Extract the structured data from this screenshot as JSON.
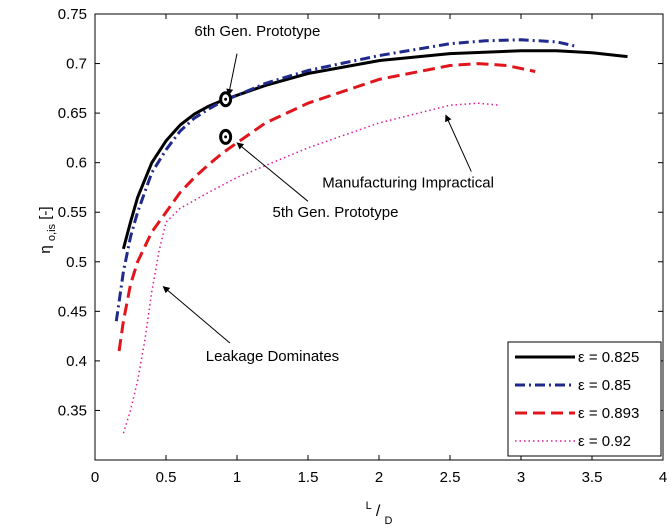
{
  "chart_data": {
    "type": "line",
    "xlim": [
      0,
      4
    ],
    "ylim": [
      0.3,
      0.75
    ],
    "xticks": [
      "0",
      "0.5",
      "1",
      "1.5",
      "2",
      "2.5",
      "3",
      "3.5",
      "4"
    ],
    "xtick_values": [
      0,
      0.5,
      1,
      1.5,
      2,
      2.5,
      3,
      3.5,
      4
    ],
    "yticks": [
      "0.35",
      "0.4",
      "0.45",
      "0.5",
      "0.55",
      "0.6",
      "0.65",
      "0.7",
      "0.75"
    ],
    "ytick_values": [
      0.35,
      0.4,
      0.45,
      0.5,
      0.55,
      0.6,
      0.65,
      0.7,
      0.75
    ],
    "xlabel": {
      "main": "L",
      "sep": "/",
      "sub": "D"
    },
    "ylabel": {
      "main": "η",
      "sub": "o,is",
      "unit": " [-]"
    },
    "grid": false,
    "legend_position": "bottom-right",
    "series": [
      {
        "name": "ε = 0.825",
        "color": "#000000",
        "style": "solid",
        "x": [
          0.2,
          0.25,
          0.3,
          0.4,
          0.5,
          0.6,
          0.7,
          0.8,
          0.9,
          1.0,
          1.2,
          1.5,
          2.0,
          2.5,
          3.0,
          3.25,
          3.5,
          3.75
        ],
        "y": [
          0.513,
          0.54,
          0.565,
          0.6,
          0.622,
          0.638,
          0.649,
          0.657,
          0.663,
          0.668,
          0.678,
          0.69,
          0.703,
          0.71,
          0.713,
          0.713,
          0.711,
          0.707
        ]
      },
      {
        "name": "ε = 0.85",
        "color": "#1f2a8c",
        "style": "dashdot",
        "x": [
          0.15,
          0.2,
          0.25,
          0.3,
          0.4,
          0.5,
          0.6,
          0.7,
          0.8,
          0.9,
          1.0,
          1.2,
          1.5,
          2.0,
          2.5,
          2.75,
          3.0,
          3.25,
          3.4
        ],
        "y": [
          0.44,
          0.49,
          0.525,
          0.55,
          0.59,
          0.613,
          0.632,
          0.645,
          0.654,
          0.662,
          0.668,
          0.68,
          0.693,
          0.708,
          0.72,
          0.723,
          0.724,
          0.722,
          0.717
        ]
      },
      {
        "name": "ε = 0.893",
        "color": "#e0161c",
        "style": "dashed",
        "x": [
          0.17,
          0.2,
          0.25,
          0.3,
          0.4,
          0.5,
          0.6,
          0.7,
          0.8,
          0.9,
          1.0,
          1.2,
          1.5,
          2.0,
          2.5,
          2.7,
          2.9,
          3.1
        ],
        "y": [
          0.41,
          0.44,
          0.477,
          0.5,
          0.53,
          0.55,
          0.57,
          0.585,
          0.598,
          0.61,
          0.62,
          0.64,
          0.66,
          0.684,
          0.698,
          0.7,
          0.698,
          0.692
        ]
      },
      {
        "name": "ε = 0.92",
        "color": "#e0199a",
        "style": "dotted",
        "x": [
          0.2,
          0.25,
          0.3,
          0.35,
          0.4,
          0.45,
          0.5,
          0.6,
          0.8,
          1.0,
          1.5,
          2.0,
          2.5,
          2.7,
          2.85
        ],
        "y": [
          0.327,
          0.35,
          0.38,
          0.42,
          0.47,
          0.51,
          0.54,
          0.554,
          0.57,
          0.585,
          0.615,
          0.64,
          0.658,
          0.66,
          0.658
        ]
      }
    ],
    "markers": [
      {
        "name": "6th Gen. Prototype",
        "x": 0.92,
        "y": 0.664
      },
      {
        "name": "5th Gen. Prototype",
        "x": 0.92,
        "y": 0.626
      }
    ],
    "annotations": [
      {
        "text": "6th Gen. Prototype",
        "text_x": 0.7,
        "text_y": 0.728,
        "anchor": "start",
        "arrow_from": [
          1.0,
          0.71
        ],
        "arrow_to": [
          0.94,
          0.668
        ]
      },
      {
        "text": "5th Gen. Prototype",
        "text_x": 1.25,
        "text_y": 0.545,
        "anchor": "start",
        "arrow_from": [
          1.5,
          0.561
        ],
        "arrow_to": [
          1.0,
          0.62
        ]
      },
      {
        "text": "Manufacturing Impractical",
        "text_x": 1.6,
        "text_y": 0.575,
        "anchor": "start",
        "arrow_from": [
          2.65,
          0.591
        ],
        "arrow_to": [
          2.47,
          0.648
        ]
      },
      {
        "text": "Leakage Dominates",
        "text_x": 0.78,
        "text_y": 0.4,
        "anchor": "start",
        "arrow_from": [
          0.95,
          0.418
        ],
        "arrow_to": [
          0.48,
          0.475
        ]
      }
    ]
  }
}
